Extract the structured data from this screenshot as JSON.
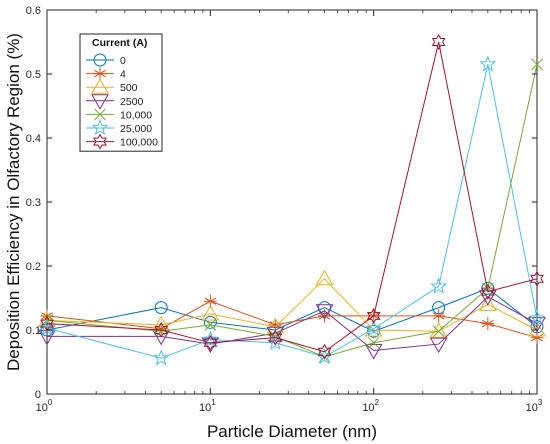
{
  "chart_data": {
    "type": "line",
    "xscale": "log",
    "xlim": [
      1,
      1000
    ],
    "ylim": [
      0,
      0.6
    ],
    "xlabel": "Particle Diameter (nm)",
    "ylabel": "Deposition Efficiency in Olfactory Region (%)",
    "x_ticks": [
      {
        "value": 1,
        "base": "10",
        "exp": "0"
      },
      {
        "value": 10,
        "base": "10",
        "exp": "1"
      },
      {
        "value": 100,
        "base": "10",
        "exp": "2"
      },
      {
        "value": 1000,
        "base": "10",
        "exp": "3"
      }
    ],
    "y_ticks": [
      {
        "value": 0,
        "label": "0"
      },
      {
        "value": 0.1,
        "label": "0.1"
      },
      {
        "value": 0.2,
        "label": "0.2"
      },
      {
        "value": 0.3,
        "label": "0.3"
      },
      {
        "value": 0.4,
        "label": "0.4"
      },
      {
        "value": 0.5,
        "label": "0.5"
      },
      {
        "value": 0.6,
        "label": "0.6"
      }
    ],
    "x": [
      1,
      5,
      10,
      25,
      50,
      100,
      250,
      500,
      1000
    ],
    "legend": {
      "title": "Current (A)",
      "position": "top-left"
    },
    "grid": false,
    "series": [
      {
        "name": "0",
        "marker": "circle",
        "color": "#0072BD",
        "values": [
          0.1,
          0.135,
          0.112,
          0.1,
          0.135,
          0.098,
          0.135,
          0.165,
          0.105
        ]
      },
      {
        "name": "4",
        "marker": "asterisk",
        "color": "#D95319",
        "values": [
          0.122,
          0.102,
          0.145,
          0.108,
          0.122,
          0.122,
          0.122,
          0.11,
          0.088
        ]
      },
      {
        "name": "500",
        "marker": "triangle-up",
        "color": "#EDB120",
        "values": [
          0.115,
          0.108,
          0.125,
          0.105,
          0.18,
          0.1,
          0.098,
          0.14,
          0.1
        ]
      },
      {
        "name": "2500",
        "marker": "triangle-down",
        "color": "#7E2F8E",
        "values": [
          0.09,
          0.09,
          0.078,
          0.095,
          0.13,
          0.068,
          0.078,
          0.152,
          0.11
        ]
      },
      {
        "name": "10,000",
        "marker": "x",
        "color": "#77AC30",
        "values": [
          0.115,
          0.098,
          0.108,
          0.09,
          0.058,
          0.08,
          0.098,
          0.165,
          0.515
        ]
      },
      {
        "name": "25,000",
        "marker": "pentagram",
        "color": "#4DBEEE",
        "values": [
          0.103,
          0.056,
          0.085,
          0.08,
          0.058,
          0.102,
          0.168,
          0.515,
          0.118
        ]
      },
      {
        "name": "100,000",
        "marker": "hexagram",
        "color": "#A2142F",
        "values": [
          0.11,
          0.1,
          0.08,
          0.088,
          0.066,
          0.122,
          0.55,
          0.16,
          0.18
        ]
      }
    ]
  }
}
